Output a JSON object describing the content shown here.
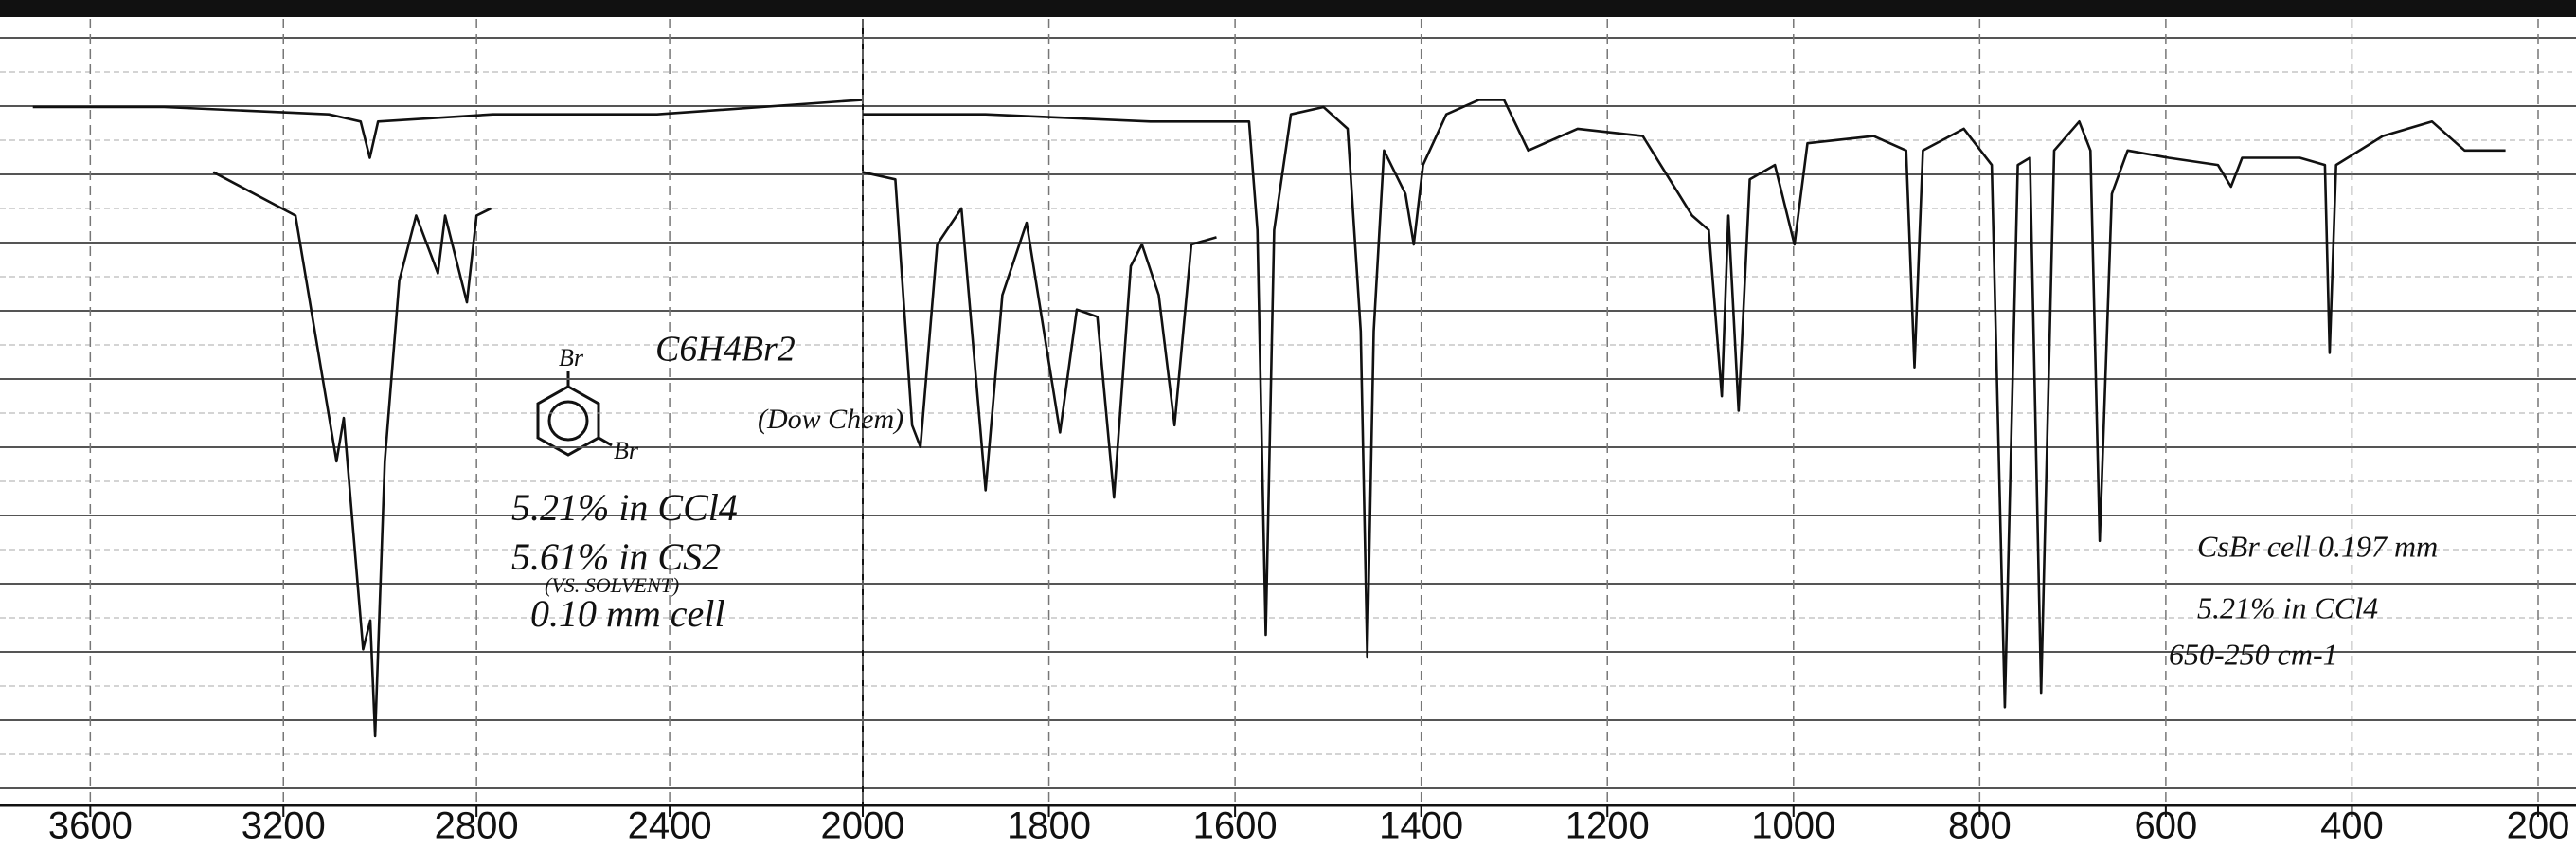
{
  "chart_data": [
    {
      "type": "line",
      "xlim": [
        3787,
        2000
      ],
      "xticks": [
        3600,
        3200,
        2800,
        2400
      ],
      "ylim": [
        0,
        100
      ],
      "grid": true,
      "series": [
        {
          "name": "5.61% in CS2",
          "color": "#111111",
          "x": [
            3719,
            3447,
            3106,
            3040,
            3021,
            3004,
            2766,
            2426,
            2000
          ],
          "values": [
            92,
            92,
            91,
            90,
            85,
            90,
            91,
            91,
            93
          ]
        },
        {
          "name": "5.21% in CCl4",
          "color": "#111111",
          "x": [
            3345,
            3175,
            3090,
            3075,
            3035,
            3020,
            3010,
            2990,
            2960,
            2925,
            2880,
            2865,
            2820,
            2800,
            2770
          ],
          "values": [
            83,
            77,
            43,
            49,
            17,
            21,
            5,
            43,
            68,
            77,
            69,
            77,
            65,
            77,
            78
          ]
        }
      ],
      "structure_labels": [
        "Br",
        "Br"
      ],
      "annotations": [
        "C6H4Br2",
        "(Dow Chem)",
        "5.21% in CCl4",
        "5.61% in CS2",
        "(VS. SOLVENT)",
        "0.10 mm cell"
      ]
    },
    {
      "type": "line",
      "xlim": [
        2000,
        200
      ],
      "xticks": [
        2000,
        1800,
        1600,
        1400,
        1200,
        1000,
        800,
        600,
        400,
        200
      ],
      "ylim": [
        0,
        100
      ],
      "grid": true,
      "series": [
        {
          "name": "5.21% in CCl4",
          "color": "#111111",
          "x": [
            2000,
            1868,
            1691,
            1585,
            1576,
            1567,
            1558,
            1540,
            1505,
            1479,
            1465,
            1458,
            1451,
            1440,
            1417,
            1408,
            1398,
            1373,
            1338,
            1311,
            1285,
            1232,
            1162,
            1109,
            1091,
            1077,
            1070,
            1059,
            1047,
            1020,
            999,
            985,
            914,
            879,
            870,
            861,
            817,
            787,
            773,
            759,
            746,
            734,
            720,
            693,
            681,
            671,
            658,
            641,
            597,
            544,
            530,
            518,
            456,
            429,
            424,
            417,
            367,
            314,
            279,
            235
          ],
          "values": [
            91,
            91,
            90,
            90,
            75,
            19,
            75,
            91,
            92,
            89,
            61,
            16,
            61,
            86,
            80,
            73,
            84,
            91,
            93,
            93,
            86,
            89,
            88,
            77,
            75,
            52,
            77,
            50,
            82,
            84,
            73,
            87,
            88,
            86,
            56,
            86,
            89,
            84,
            9,
            84,
            85,
            11,
            86,
            90,
            86,
            32,
            80,
            86,
            85,
            84,
            81,
            85,
            85,
            84,
            58,
            84,
            88,
            90,
            86,
            86
          ]
        },
        {
          "name": "5.61% in CS2",
          "color": "#111111",
          "x": [
            2000,
            1965,
            1947,
            1938,
            1920,
            1894,
            1868,
            1850,
            1824,
            1788,
            1770,
            1748,
            1730,
            1712,
            1700,
            1682,
            1665,
            1647,
            1620
          ],
          "values": [
            83,
            82,
            48,
            45,
            73,
            78,
            39,
            66,
            76,
            47,
            64,
            63,
            38,
            70,
            73,
            66,
            48,
            73,
            74
          ]
        }
      ],
      "annotations": [
        "CsBr cell 0.197 mm",
        "5.21% in CCl4",
        "650-250 cm-1"
      ]
    }
  ]
}
